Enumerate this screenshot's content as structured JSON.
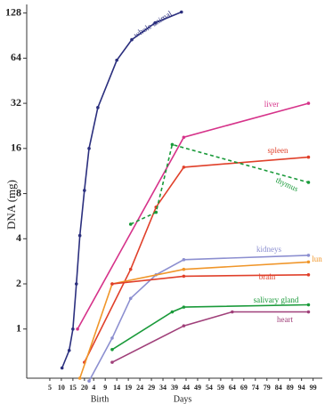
{
  "chart_data": {
    "type": "line",
    "y_label": "DNA (mg)",
    "x_label": "Days",
    "annotation": "Birth",
    "log_scale_y": true,
    "xlim": [
      -5,
      123
    ],
    "ylim": [
      0.47,
      146
    ],
    "xticks": [
      5,
      10,
      15,
      20,
      {
        "value": 24,
        "label": "4"
      },
      {
        "value": 29,
        "label": "9"
      },
      {
        "value": 34,
        "label": "14"
      },
      {
        "value": 39,
        "label": "19"
      },
      {
        "value": 44,
        "label": "24"
      },
      {
        "value": 49,
        "label": "29"
      },
      {
        "value": 54,
        "label": "34"
      },
      {
        "value": 59,
        "label": "39"
      },
      {
        "value": 64,
        "label": "44"
      },
      {
        "value": 69,
        "label": "49"
      },
      {
        "value": 74,
        "label": "54"
      },
      {
        "value": 79,
        "label": "59"
      },
      {
        "value": 84,
        "label": "64"
      },
      {
        "value": 89,
        "label": "69"
      },
      {
        "value": 94,
        "label": "74"
      },
      {
        "value": 99,
        "label": "79"
      },
      {
        "value": 104,
        "label": "84"
      },
      {
        "value": 109,
        "label": "89"
      },
      {
        "value": 114,
        "label": "94"
      },
      {
        "value": 119,
        "label": "99"
      }
    ],
    "yticks": [
      1,
      2,
      4,
      8,
      16,
      32,
      64,
      128
    ],
    "series": [
      {
        "name": "whole animal",
        "color": "#2b2f7e",
        "x": [
          10.3,
          13.4,
          15,
          16.5,
          18,
          20,
          22,
          25.8,
          34,
          40.5,
          50.6,
          62
        ],
        "values": [
          0.55,
          0.72,
          1,
          2,
          4.2,
          8.4,
          16,
          30,
          62,
          85,
          110,
          130
        ]
      },
      {
        "name": "liver",
        "color": "#d6338a",
        "x": [
          17,
          63,
          117
        ],
        "values": [
          1,
          19,
          32
        ]
      },
      {
        "name": "spleen",
        "color": "#e0402a",
        "x": [
          20,
          40,
          51,
          63,
          117
        ],
        "values": [
          0.6,
          2.5,
          6.5,
          12,
          14
        ]
      },
      {
        "name": "thymus",
        "color": "#1a9a3a",
        "dashed": true,
        "x": [
          40,
          51,
          58,
          117
        ],
        "values": [
          5,
          6,
          17,
          9.5
        ]
      },
      {
        "name": "kidneys",
        "color": "#8c8fd0",
        "x": [
          22,
          32,
          40,
          51,
          63,
          117
        ],
        "values": [
          0.45,
          0.87,
          1.6,
          2.3,
          2.9,
          3.1
        ]
      },
      {
        "name": "lun",
        "color": "#f0962a",
        "x": [
          18,
          32,
          63,
          117
        ],
        "values": [
          0.47,
          2,
          2.5,
          2.8
        ]
      },
      {
        "name": "brain",
        "color": "#e0402a",
        "x": [
          32,
          63,
          117
        ],
        "values": [
          2,
          2.25,
          2.3
        ]
      },
      {
        "name": "salivary gland",
        "color": "#1a9a3a",
        "x": [
          32,
          58,
          63,
          117
        ],
        "values": [
          0.73,
          1.3,
          1.4,
          1.45
        ]
      },
      {
        "name": "heart",
        "color": "#a0407a",
        "x": [
          32,
          63,
          84,
          117
        ],
        "values": [
          0.6,
          1.05,
          1.3,
          1.3
        ]
      }
    ]
  }
}
